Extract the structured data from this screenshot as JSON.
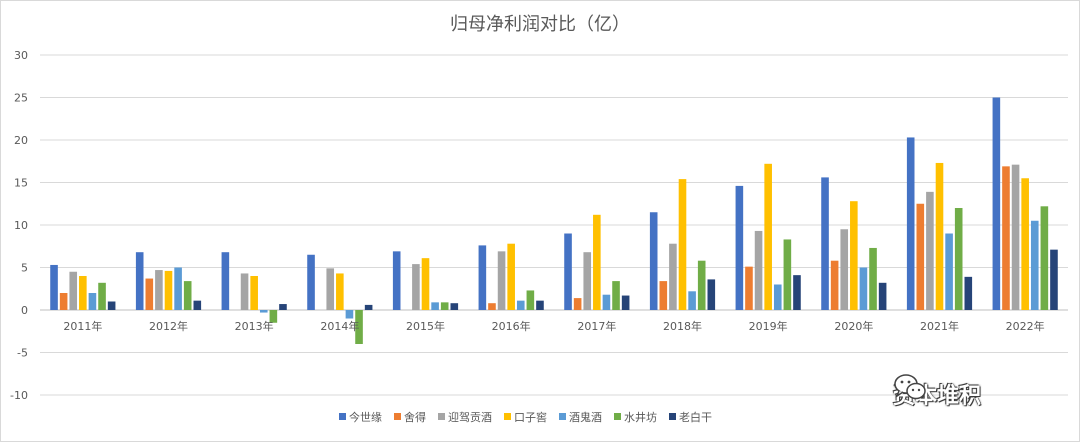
{
  "chart_data": {
    "type": "bar",
    "title": "归母净利润对比（亿）",
    "categories": [
      "2011年",
      "2012年",
      "2013年",
      "2014年",
      "2015年",
      "2016年",
      "2017年",
      "2018年",
      "2019年",
      "2020年",
      "2021年",
      "2022年"
    ],
    "ylim": [
      -10,
      30
    ],
    "yticks": [
      -10,
      -5,
      0,
      5,
      10,
      15,
      20,
      25,
      30
    ],
    "grid": true,
    "legend_position": "bottom",
    "series": [
      {
        "name": "今世缘",
        "color": "#4472c4",
        "values": [
          5.3,
          6.8,
          6.8,
          6.5,
          6.9,
          7.6,
          9.0,
          11.5,
          14.6,
          15.6,
          20.3,
          25.0
        ]
      },
      {
        "name": "舍得",
        "color": "#ed7d31",
        "values": [
          2.0,
          3.7,
          0.0,
          0.0,
          0.0,
          0.8,
          1.4,
          3.4,
          5.1,
          5.8,
          12.5,
          16.9
        ]
      },
      {
        "name": "迎驾贡酒",
        "color": "#a5a5a5",
        "values": [
          4.5,
          4.7,
          4.3,
          4.9,
          5.4,
          6.9,
          6.8,
          7.8,
          9.3,
          9.5,
          13.9,
          17.1
        ]
      },
      {
        "name": "口子窖",
        "color": "#ffc000",
        "values": [
          4.0,
          4.6,
          4.0,
          4.3,
          6.1,
          7.8,
          11.2,
          15.4,
          17.2,
          12.8,
          17.3,
          15.5
        ]
      },
      {
        "name": "酒鬼酒",
        "color": "#5b9bd5",
        "values": [
          2.0,
          5.0,
          -0.3,
          -1.0,
          0.9,
          1.1,
          1.8,
          2.2,
          3.0,
          5.0,
          9.0,
          10.5
        ]
      },
      {
        "name": "水井坊",
        "color": "#70ad47",
        "values": [
          3.2,
          3.4,
          -1.5,
          -4.0,
          0.9,
          2.3,
          3.4,
          5.8,
          8.3,
          7.3,
          12.0,
          12.2
        ]
      },
      {
        "name": "老白干",
        "color": "#264478",
        "values": [
          1.0,
          1.1,
          0.7,
          0.6,
          0.8,
          1.1,
          1.7,
          3.6,
          4.1,
          3.2,
          3.9,
          7.1
        ]
      }
    ]
  },
  "watermark": {
    "text": "资本堆积",
    "icon": "wechat-icon"
  }
}
